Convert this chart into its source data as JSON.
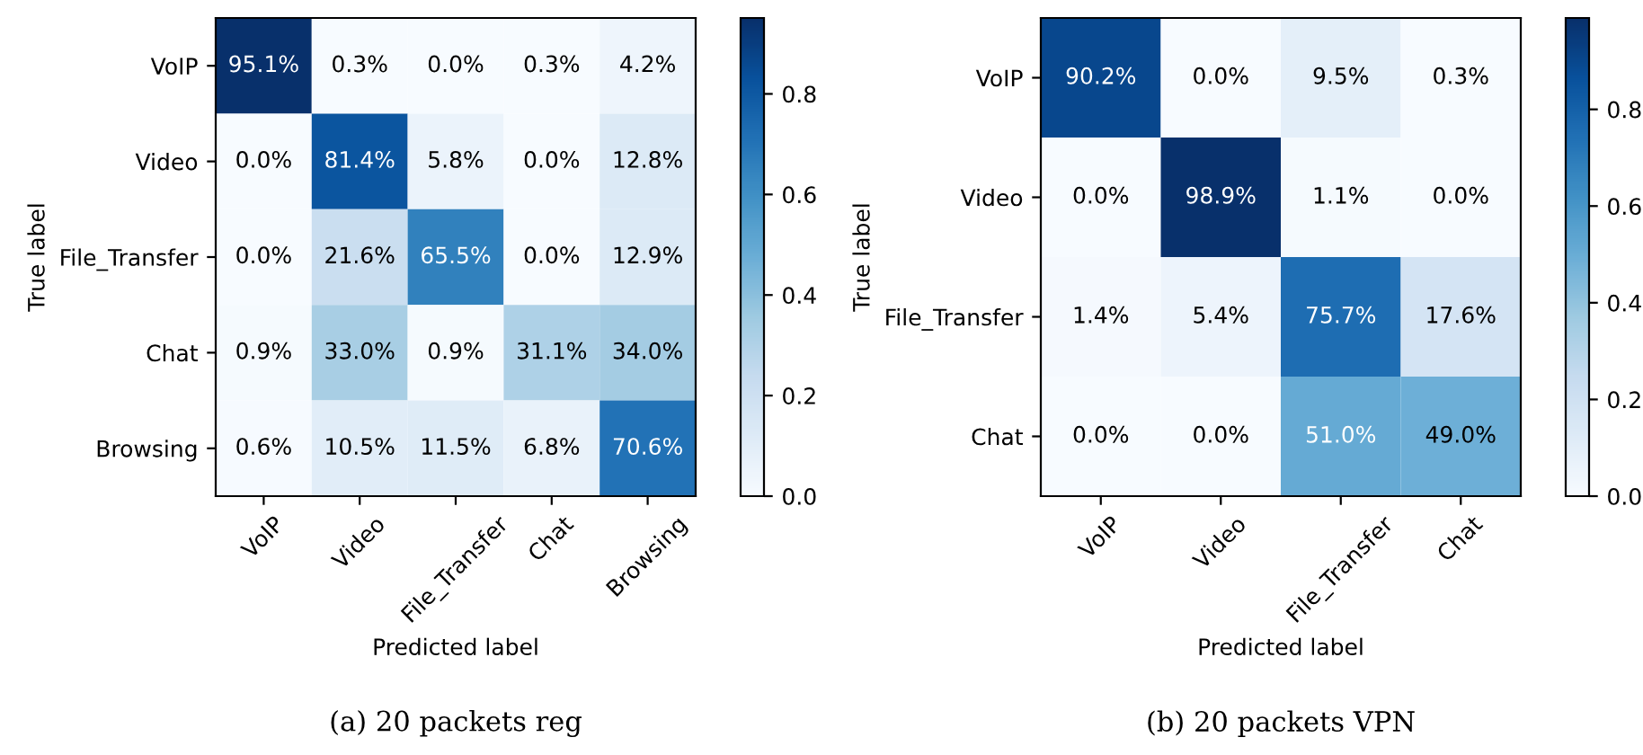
{
  "chart_data": [
    {
      "type": "heatmap",
      "xlabel": "Predicted label",
      "ylabel": "True label",
      "annotations": [
        "(a) 20 packets reg"
      ],
      "categories": [
        "VoIP",
        "Video",
        "File_Transfer",
        "Chat",
        "Browsing"
      ],
      "y_categories": [
        "VoIP",
        "Video",
        "File_Transfer",
        "Chat",
        "Browsing"
      ],
      "cells": [
        [
          0.951,
          0.003,
          0.0,
          0.003,
          0.042
        ],
        [
          0.0,
          0.814,
          0.058,
          0.0,
          0.128
        ],
        [
          0.0,
          0.216,
          0.655,
          0.0,
          0.129
        ],
        [
          0.009,
          0.33,
          0.009,
          0.311,
          0.34
        ],
        [
          0.006,
          0.105,
          0.115,
          0.068,
          0.706
        ]
      ],
      "cell_labels": [
        [
          "95.1%",
          "0.3%",
          "0.0%",
          "0.3%",
          "4.2%"
        ],
        [
          "0.0%",
          "81.4%",
          "5.8%",
          "0.0%",
          "12.8%"
        ],
        [
          "0.0%",
          "21.6%",
          "65.5%",
          "0.0%",
          "12.9%"
        ],
        [
          "0.9%",
          "33.0%",
          "0.9%",
          "31.1%",
          "34.0%"
        ],
        [
          "0.6%",
          "10.5%",
          "11.5%",
          "6.8%",
          "70.6%"
        ]
      ],
      "clim": [
        0,
        0.951
      ],
      "cticks": [
        {
          "value": 0,
          "label": "0.0"
        },
        {
          "value": 0.2,
          "label": "0.2"
        },
        {
          "value": 0.4,
          "label": "0.4"
        },
        {
          "value": 0.6,
          "label": "0.6"
        },
        {
          "value": 0.8,
          "label": "0.8"
        }
      ]
    },
    {
      "type": "heatmap",
      "xlabel": "Predicted label",
      "ylabel": "True label",
      "annotations": [
        "(b) 20 packets VPN"
      ],
      "categories": [
        "VoIP",
        "Video",
        "File_Transfer",
        "Chat"
      ],
      "y_categories": [
        "VoIP",
        "Video",
        "File_Transfer",
        "Chat"
      ],
      "cells": [
        [
          0.902,
          0.0,
          0.095,
          0.003
        ],
        [
          0.0,
          0.989,
          0.011,
          0.0
        ],
        [
          0.014,
          0.054,
          0.757,
          0.176
        ],
        [
          0.0,
          0.0,
          0.51,
          0.49
        ]
      ],
      "cell_labels": [
        [
          "90.2%",
          "0.0%",
          "9.5%",
          "0.3%"
        ],
        [
          "0.0%",
          "98.9%",
          "1.1%",
          "0.0%"
        ],
        [
          "1.4%",
          "5.4%",
          "75.7%",
          "17.6%"
        ],
        [
          "0.0%",
          "0.0%",
          "51.0%",
          "49.0%"
        ]
      ],
      "clim": [
        0,
        0.989
      ],
      "cticks": [
        {
          "value": 0,
          "label": "0.0"
        },
        {
          "value": 0.2,
          "label": "0.2"
        },
        {
          "value": 0.4,
          "label": "0.4"
        },
        {
          "value": 0.6,
          "label": "0.6"
        },
        {
          "value": 0.8,
          "label": "0.8"
        }
      ]
    }
  ]
}
